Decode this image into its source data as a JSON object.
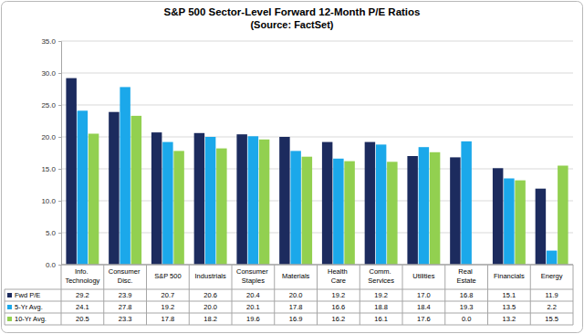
{
  "chart_data": {
    "type": "bar",
    "title": "S&P 500 Sector-Level Forward 12-Month P/E Ratios",
    "subtitle": "(Source: FactSet)",
    "categories": [
      "Info. Technology",
      "Consumer Disc.",
      "S&P 500",
      "Industrials",
      "Consumer Staples",
      "Materials",
      "Health Care",
      "Comm. Services",
      "Utilities",
      "Real Estate",
      "Financials",
      "Energy"
    ],
    "series": [
      {
        "name": "Fwd P/E",
        "color": "#1c2b5e",
        "values": [
          29.2,
          23.9,
          20.7,
          20.6,
          20.4,
          20.0,
          19.2,
          19.2,
          17.0,
          16.8,
          15.1,
          11.9
        ],
        "value_labels": [
          "29.2",
          "23.9",
          "20.7",
          "20.6",
          "20.4",
          "20.0",
          "19.2",
          "19.2",
          "17.0",
          "16.8",
          "15.1",
          "11.9"
        ]
      },
      {
        "name": "5-Yr Avg.",
        "color": "#1ba8ea",
        "values": [
          24.1,
          27.8,
          19.2,
          20.0,
          20.1,
          17.8,
          16.6,
          18.8,
          18.4,
          19.3,
          13.5,
          2.2
        ],
        "value_labels": [
          "24.1",
          "27.8",
          "19.2",
          "20.0",
          "20.1",
          "17.8",
          "16.6",
          "18.8",
          "18.4",
          "19.3",
          "13.5",
          "2.2"
        ]
      },
      {
        "name": "10-Yr Avg.",
        "color": "#92d050",
        "values": [
          20.5,
          23.3,
          17.8,
          18.2,
          19.6,
          16.9,
          16.2,
          16.1,
          17.6,
          0.0,
          13.2,
          15.5
        ],
        "value_labels": [
          "20.5",
          "23.3",
          "17.8",
          "18.2",
          "19.6",
          "16.9",
          "16.2",
          "16.1",
          "17.6",
          "0.0",
          "13.2",
          "15.5"
        ]
      }
    ],
    "ylim": [
      0,
      35
    ],
    "yticks": [
      {
        "value": 0,
        "label": "0.0"
      },
      {
        "value": 5,
        "label": "5.0"
      },
      {
        "value": 10,
        "label": "10.0"
      },
      {
        "value": 15,
        "label": "15.0"
      },
      {
        "value": 20,
        "label": "20.0"
      },
      {
        "value": 25,
        "label": "25.0"
      },
      {
        "value": 30,
        "label": "30.0"
      },
      {
        "value": 35,
        "label": "35.0"
      }
    ],
    "grid": true
  }
}
